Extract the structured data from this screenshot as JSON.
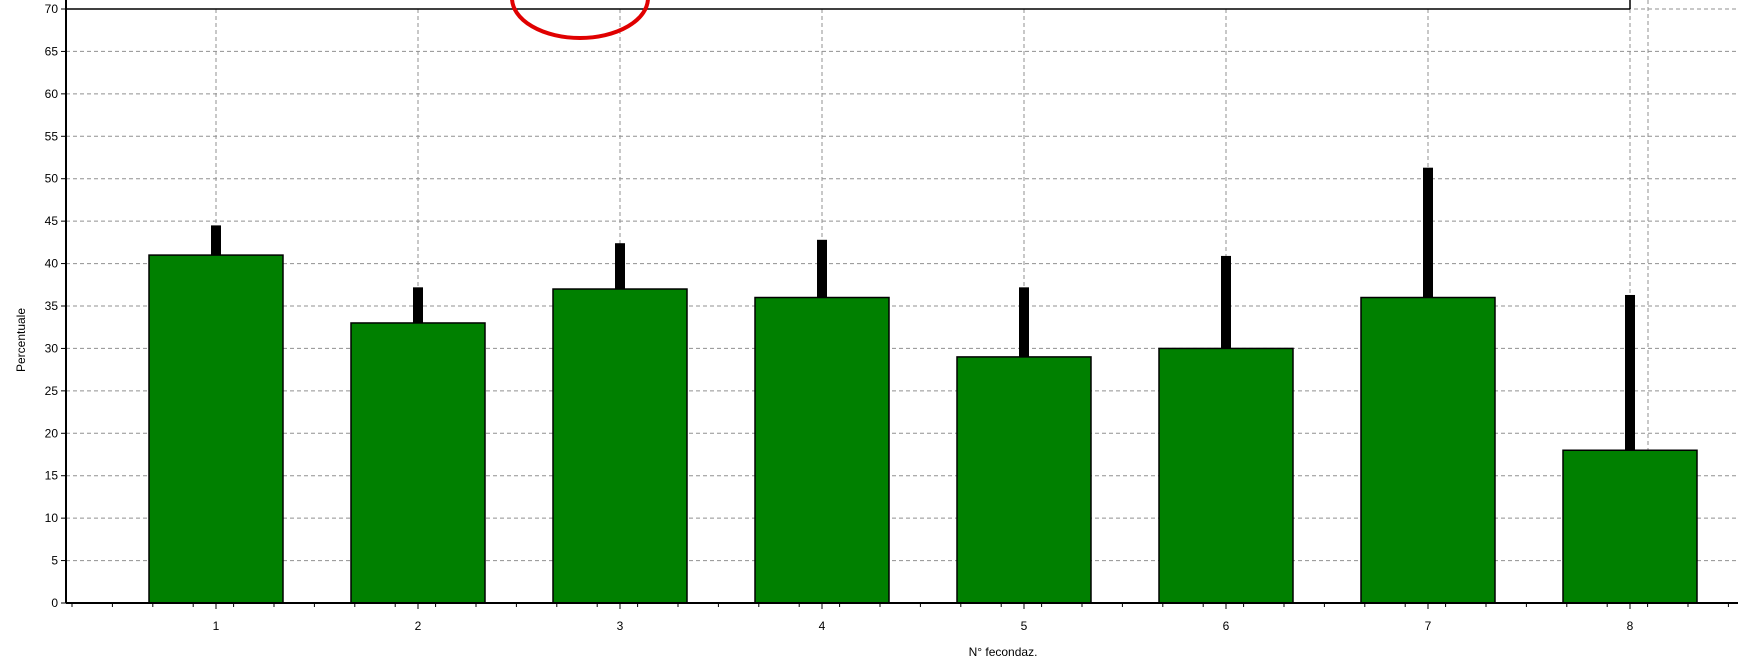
{
  "chart_data": {
    "type": "bar",
    "xlabel": "N°  fecondaz.",
    "ylabel": "Percentuale",
    "categories": [
      "1",
      "2",
      "3",
      "4",
      "5",
      "6",
      "7",
      "8"
    ],
    "values": [
      41,
      33,
      37,
      36,
      29,
      30,
      36,
      18
    ],
    "error_upper": [
      44.5,
      37.2,
      42.4,
      42.8,
      37.2,
      40.9,
      51.3,
      36.3
    ],
    "ylim": [
      0,
      70
    ],
    "yticks": [
      0,
      5,
      10,
      15,
      20,
      25,
      30,
      35,
      40,
      45,
      50,
      55,
      60,
      65,
      70
    ],
    "grid": true,
    "colors": {
      "bar": "#008000",
      "bar_border": "#000000",
      "error_bar": "#000000",
      "grid": "#909090",
      "highlight_circle": "#e00000"
    }
  }
}
